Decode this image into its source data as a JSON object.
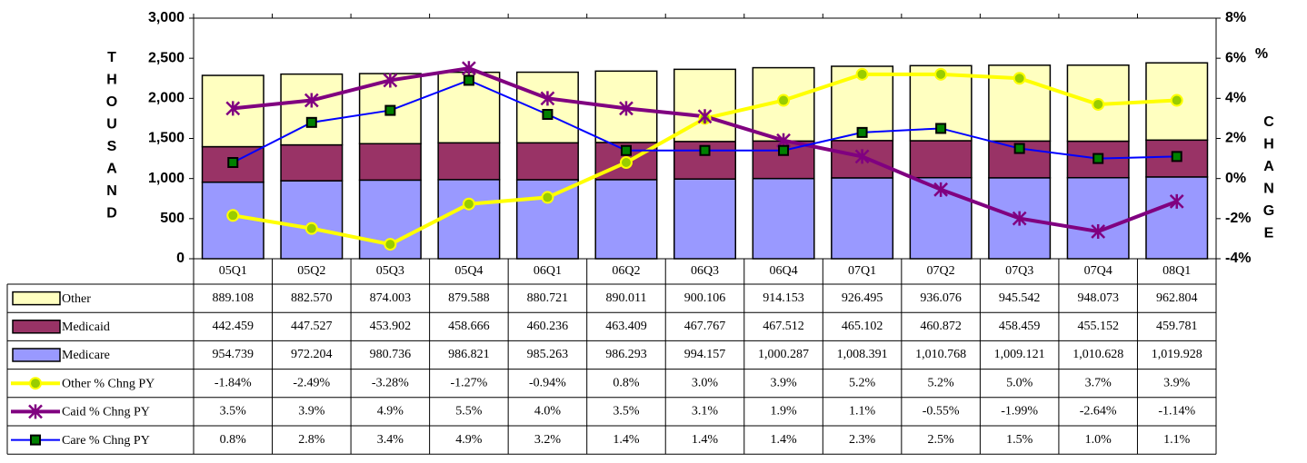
{
  "chart_data": {
    "type": "bar",
    "y_label": "THOUSAND",
    "y2_label_top": "%",
    "y2_label": "CHANGE",
    "categories": [
      "05Q1",
      "05Q2",
      "05Q3",
      "05Q4",
      "06Q1",
      "06Q2",
      "06Q3",
      "06Q4",
      "07Q1",
      "07Q2",
      "07Q3",
      "07Q4",
      "08Q1"
    ],
    "ylim": [
      0,
      3000
    ],
    "yticks": [
      0,
      {
        "value": 500,
        "label": "500"
      },
      {
        "value": 1000,
        "label": "1,000"
      },
      {
        "value": 1500,
        "label": "1,500"
      },
      {
        "value": 2000,
        "label": "2,000"
      },
      {
        "value": 2500,
        "label": "2,500"
      },
      {
        "value": 3000,
        "label": "3,000"
      }
    ],
    "y2lim": [
      -4,
      8
    ],
    "y2ticks": [
      {
        "value": -4,
        "label": "-4%"
      },
      {
        "value": -2,
        "label": "-2%"
      },
      {
        "value": 0,
        "label": "0%"
      },
      {
        "value": 2,
        "label": "2%"
      },
      {
        "value": 4,
        "label": "4%"
      },
      {
        "value": 6,
        "label": "6%"
      },
      {
        "value": 8,
        "label": "8%"
      }
    ],
    "series": [
      {
        "name": "Other",
        "kind": "bar",
        "color": "#ffffc0",
        "values": [
          889.108,
          882.57,
          874.003,
          879.588,
          880.721,
          890.011,
          900.106,
          914.153,
          926.495,
          936.076,
          945.542,
          948.073,
          962.804
        ],
        "value_labels": [
          "889.108",
          "882.570",
          "874.003",
          "879.588",
          "880.721",
          "890.011",
          "900.106",
          "914.153",
          "926.495",
          "936.076",
          "945.542",
          "948.073",
          "962.804"
        ]
      },
      {
        "name": "Medicaid",
        "kind": "bar",
        "color": "#993366",
        "values": [
          442.459,
          447.527,
          453.902,
          458.666,
          460.236,
          463.409,
          467.767,
          467.512,
          465.102,
          460.872,
          458.459,
          455.152,
          459.781
        ],
        "value_labels": [
          "442.459",
          "447.527",
          "453.902",
          "458.666",
          "460.236",
          "463.409",
          "467.767",
          "467.512",
          "465.102",
          "460.872",
          "458.459",
          "455.152",
          "459.781"
        ]
      },
      {
        "name": "Medicare",
        "kind": "bar",
        "color": "#9999ff",
        "values": [
          954.739,
          972.204,
          980.736,
          986.821,
          985.263,
          986.293,
          994.157,
          1000.287,
          1008.391,
          1010.768,
          1009.121,
          1010.628,
          1019.928
        ],
        "value_labels": [
          "954.739",
          "972.204",
          "980.736",
          "986.821",
          "985.263",
          "986.293",
          "994.157",
          "1,000.287",
          "1,008.391",
          "1,010.768",
          "1,009.121",
          "1,010.628",
          "1,019.928"
        ]
      },
      {
        "name": "Other % Chng PY",
        "kind": "line",
        "axis": "y2",
        "color": "#ffff00",
        "marker": "circle",
        "marker_color": "#99cc00",
        "values": [
          -1.84,
          -2.49,
          -3.28,
          -1.27,
          -0.94,
          0.8,
          3.0,
          3.9,
          5.2,
          5.2,
          5.0,
          3.7,
          3.9
        ],
        "value_labels": [
          "-1.84%",
          "-2.49%",
          "-3.28%",
          "-1.27%",
          "-0.94%",
          "0.8%",
          "3.0%",
          "3.9%",
          "5.2%",
          "5.2%",
          "5.0%",
          "3.7%",
          "3.9%"
        ]
      },
      {
        "name": "Caid % Chng PY",
        "kind": "line",
        "axis": "y2",
        "color": "#800080",
        "marker": "star",
        "marker_color": "#800080",
        "values": [
          3.5,
          3.9,
          4.9,
          5.5,
          4.0,
          3.5,
          3.1,
          1.9,
          1.1,
          -0.55,
          -1.99,
          -2.64,
          -1.14
        ],
        "value_labels": [
          "3.5%",
          "3.9%",
          "4.9%",
          "5.5%",
          "4.0%",
          "3.5%",
          "3.1%",
          "1.9%",
          "1.1%",
          "-0.55%",
          "-1.99%",
          "-2.64%",
          "-1.14%"
        ]
      },
      {
        "name": "Care % Chng PY",
        "kind": "line",
        "axis": "y2",
        "color": "#0000ff",
        "marker": "square",
        "marker_color": "#008000",
        "values": [
          0.8,
          2.8,
          3.4,
          4.9,
          3.2,
          1.4,
          1.4,
          1.4,
          2.3,
          2.5,
          1.5,
          1.0,
          1.1
        ],
        "value_labels": [
          "0.8%",
          "2.8%",
          "3.4%",
          "4.9%",
          "3.2%",
          "1.4%",
          "1.4%",
          "1.4%",
          "2.3%",
          "2.5%",
          "1.5%",
          "1.0%",
          "1.1%"
        ]
      }
    ]
  }
}
